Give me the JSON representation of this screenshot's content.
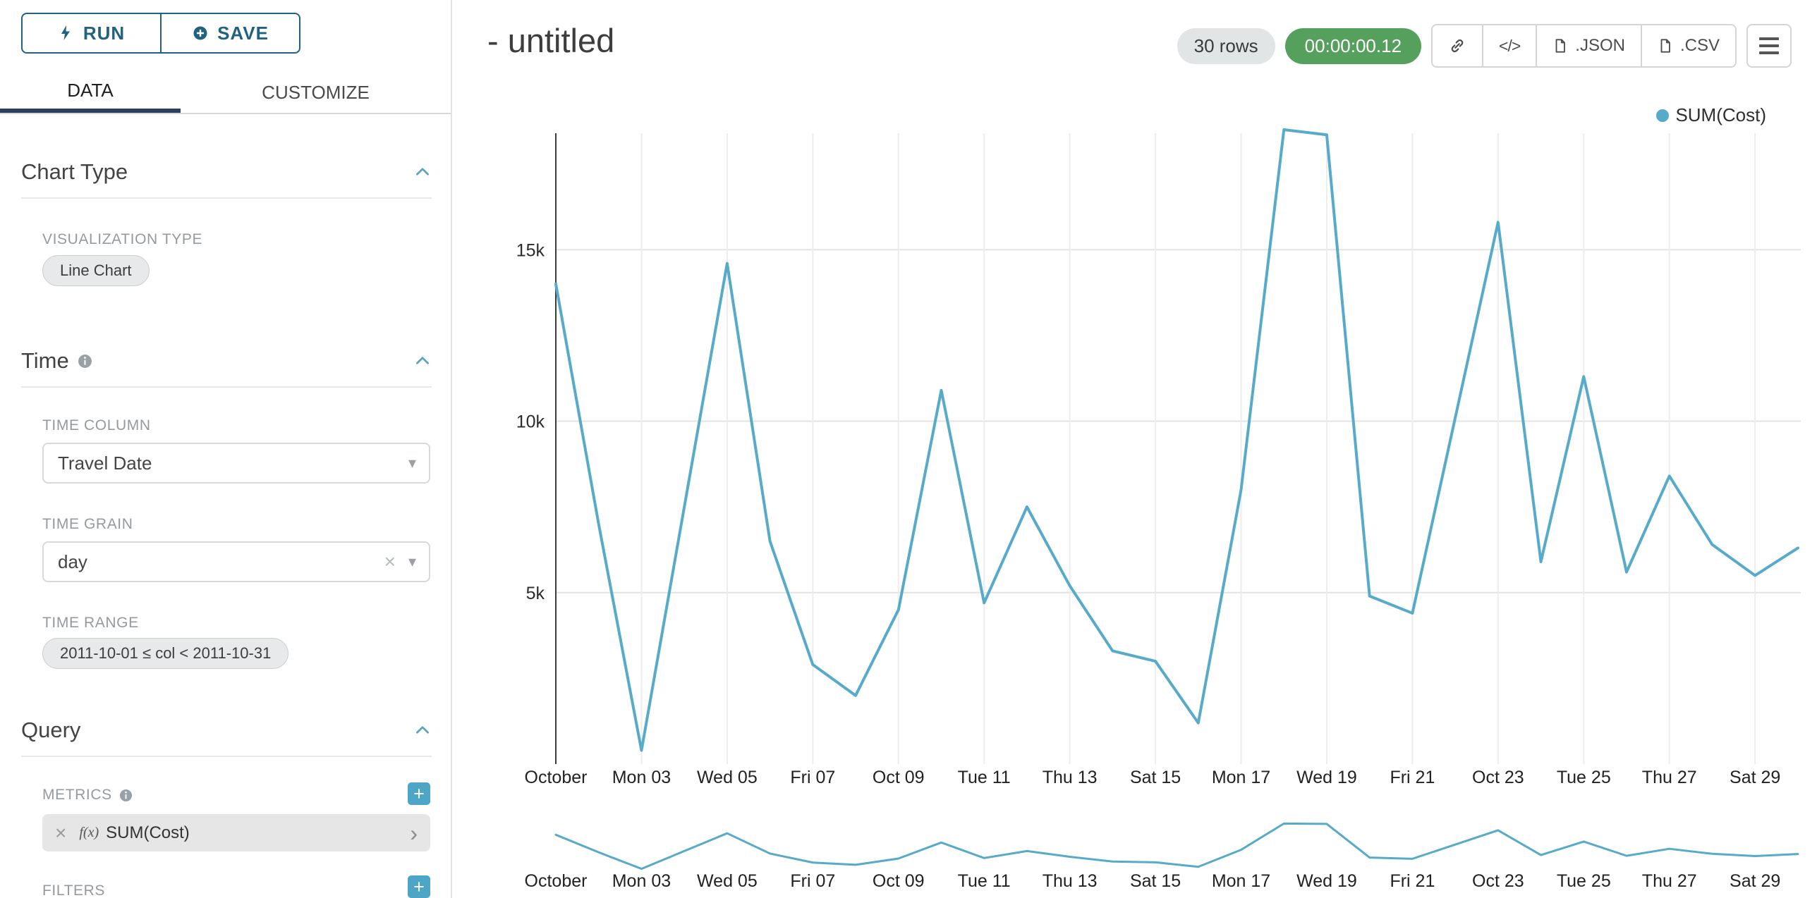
{
  "icons": {
    "close": "×",
    "caret_down": "▾",
    "chevron_right": "›",
    "plus": "+",
    "code": "</>"
  },
  "colors": {
    "accent": "#4da6c6",
    "line": "#57abc9",
    "timer_bg": "#55a05c",
    "tab_underline": "#2d3e5c",
    "button_outline": "#20627f"
  },
  "sidebar": {
    "run_label": "RUN",
    "save_label": "SAVE",
    "tabs": [
      {
        "label": "DATA"
      },
      {
        "label": "CUSTOMIZE"
      }
    ],
    "chart_type": {
      "title": "Chart Type",
      "viz_label": "VISUALIZATION TYPE",
      "viz_value": "Line Chart"
    },
    "time": {
      "title": "Time",
      "column_label": "TIME COLUMN",
      "column_value": "Travel Date",
      "grain_label": "TIME GRAIN",
      "grain_value": "day",
      "range_label": "TIME RANGE",
      "range_value": "2011-10-01 ≤ col < 2011-10-31"
    },
    "query": {
      "title": "Query",
      "metrics_label": "METRICS",
      "metric_fx": "f(x)",
      "metric_value": "SUM(Cost)",
      "filters_label": "FILTERS"
    }
  },
  "header": {
    "title": "- untitled",
    "rows_badge": "30 rows",
    "timer": "00:00:00.12",
    "json_label": ".JSON",
    "csv_label": ".CSV"
  },
  "legend": {
    "label": "SUM(Cost)"
  },
  "chart_data": {
    "type": "line",
    "title": "",
    "xlabel": "",
    "ylabel": "",
    "x": [
      "2011-10-01",
      "2011-10-02",
      "2011-10-03",
      "2011-10-04",
      "2011-10-05",
      "2011-10-06",
      "2011-10-07",
      "2011-10-08",
      "2011-10-09",
      "2011-10-10",
      "2011-10-11",
      "2011-10-12",
      "2011-10-13",
      "2011-10-14",
      "2011-10-15",
      "2011-10-16",
      "2011-10-17",
      "2011-10-18",
      "2011-10-19",
      "2011-10-20",
      "2011-10-21",
      "2011-10-22",
      "2011-10-23",
      "2011-10-24",
      "2011-10-25",
      "2011-10-26",
      "2011-10-27",
      "2011-10-28",
      "2011-10-29",
      "2011-10-30"
    ],
    "series": [
      {
        "name": "SUM(Cost)",
        "values": [
          14000,
          7000,
          400,
          7500,
          14600,
          6500,
          2900,
          2000,
          4500,
          10900,
          4700,
          7500,
          5200,
          3300,
          3000,
          1200,
          8000,
          18500,
          18350,
          4900,
          4400,
          10100,
          15800,
          5900,
          11300,
          5600,
          8400,
          6400,
          5500,
          6300
        ]
      }
    ],
    "x_tick_labels": [
      "October",
      "Mon 03",
      "Wed 05",
      "Fri 07",
      "Oct 09",
      "Tue 11",
      "Thu 13",
      "Sat 15",
      "Mon 17",
      "Wed 19",
      "Fri 21",
      "Oct 23",
      "Tue 25",
      "Thu 27",
      "Sat 29"
    ],
    "x_tick_positions": [
      0,
      2,
      4,
      6,
      8,
      10,
      12,
      14,
      16,
      18,
      20,
      22,
      24,
      26,
      28
    ],
    "y_ticks": [
      {
        "label": "5k",
        "value": 5000
      },
      {
        "label": "10k",
        "value": 10000
      },
      {
        "label": "15k",
        "value": 15000
      }
    ],
    "ylim": [
      0,
      18600
    ],
    "grid": true,
    "legend_position": "top-right",
    "color": "#57abc9"
  }
}
